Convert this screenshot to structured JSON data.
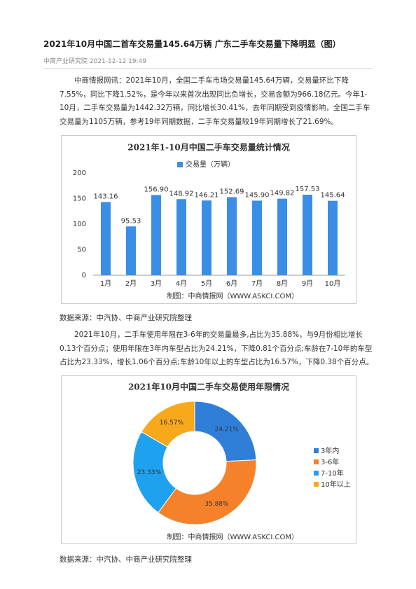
{
  "header": {
    "title": "2021年10月中国二首车交易量145.64万辆 广东二手车交易量下降明显（图）",
    "meta": "中商产业研究院 2021-12-12 19:49"
  },
  "paragraphs": [
    "中商情报网讯：2021年10月，全国二手车市场交易量145.64万辆，交易量环比下降7.55%，同比下降1.52%，是今年以来首次出现同比负增长，交易金额为966.18亿元。今年1-10月，二手车交易量为1442.32万辆，同比增长30.41%，去年同期受到疫情影响，全国二手车交易量为1105万辆，参考19年同期数据，二手车交易量较19年同期增长了21.69%。",
    "2021年10月，二手车使用年限在3-6年的交易量最多,占比为35.88%，与9月份相比增长0.13个百分点；使用年限在3年内车型占比为24.21%，下降0.81个百分点;车龄在7-10年的车型占比为23.33%，增长1.06个百分点;车龄10年以上的车型占比为16.57%，下降0.38个百分点。"
  ],
  "sources": [
    "数据来源：中汽协、中商产业研究院整理",
    "数据来源：中汽协、中商产业研究院整理"
  ],
  "chart_data": [
    {
      "type": "bar",
      "title": "2021年1-10月中国二手车交易量统计情况",
      "footer": "制图：中商情报网（WWW.ASKCI.COM）",
      "categories": [
        "1月",
        "2月",
        "3月",
        "4月",
        "5月",
        "6月",
        "7月",
        "8月",
        "9月",
        "10月"
      ],
      "series": [
        {
          "name": "交易量（万辆）",
          "color": "#3a8ee6",
          "values": [
            143.16,
            95.53,
            156.9,
            148.92,
            146.21,
            152.69,
            145.9,
            149.82,
            157.53,
            145.64
          ],
          "value_labels": [
            "143.16",
            "95.53",
            "156.90",
            "148.92",
            "146.21",
            "152.69",
            "145.90",
            "149.82",
            "157.53",
            "145.64"
          ]
        }
      ],
      "ylim": [
        0,
        200
      ],
      "yticks": [
        0,
        50,
        100,
        150,
        200
      ],
      "grid": false
    },
    {
      "type": "pie",
      "title": "2021年10月中国二手车交易使用年限情况",
      "footer": "制图：中商情报网（WWW.ASKCI.COM）",
      "categories": [
        "3年内",
        "3-6年",
        "7-10年",
        "10年以上"
      ],
      "values": [
        24.21,
        35.88,
        23.33,
        16.57
      ],
      "value_labels": [
        "24.21%",
        "35.88%",
        "23.33%",
        "16.57%"
      ],
      "colors": [
        "#2f7fd8",
        "#f5822a",
        "#1ea1ef",
        "#f7a81b"
      ]
    }
  ]
}
